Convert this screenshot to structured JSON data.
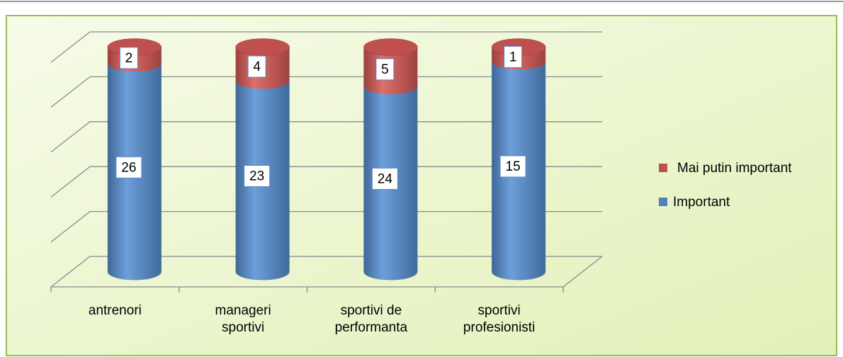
{
  "chart_data": {
    "type": "bar",
    "stack": "percent",
    "three_d": true,
    "categories": [
      "antrenori",
      "manageri sportivi",
      "sportivi de performanta",
      "sportivi profesionisti"
    ],
    "series": [
      {
        "name": "Important",
        "color": "#4f81bd",
        "values": [
          26,
          23,
          24,
          15
        ]
      },
      {
        "name": "Mai putin important",
        "color": "#c0504d",
        "values": [
          2,
          4,
          5,
          1
        ]
      }
    ],
    "ylim": [
      0,
      100
    ],
    "yticks": [
      0,
      20,
      40,
      60,
      80,
      100
    ],
    "grid": true,
    "legend": "right"
  }
}
